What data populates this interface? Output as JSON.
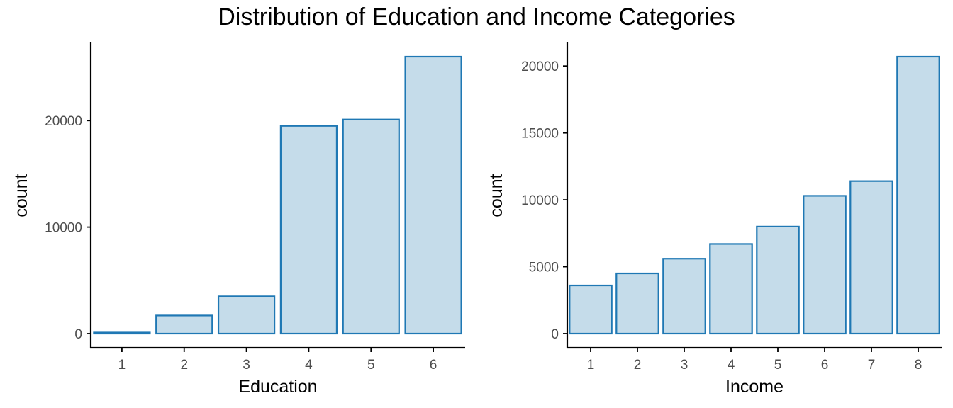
{
  "title": "Distribution of Education and Income Categories",
  "style": {
    "bar_fill": "#c5dcea",
    "bar_stroke": "#1f78b4",
    "axis_color": "#000000",
    "tick_label_color": "#4d4d4d"
  },
  "chart_data": [
    {
      "type": "bar",
      "title": "",
      "xlabel": "Education",
      "ylabel": "count",
      "categories": [
        "1",
        "2",
        "3",
        "4",
        "5",
        "6"
      ],
      "values": [
        100,
        1700,
        3500,
        19500,
        20100,
        26000
      ],
      "ylim": [
        0,
        26000
      ],
      "yticks": [
        0,
        10000,
        20000
      ],
      "grid": false
    },
    {
      "type": "bar",
      "title": "",
      "xlabel": "Income",
      "ylabel": "count",
      "categories": [
        "1",
        "2",
        "3",
        "4",
        "5",
        "6",
        "7",
        "8"
      ],
      "values": [
        3600,
        4500,
        5600,
        6700,
        8000,
        10300,
        11400,
        20700
      ],
      "ylim": [
        0,
        20700
      ],
      "yticks": [
        0,
        5000,
        10000,
        15000,
        20000
      ],
      "grid": false
    }
  ]
}
